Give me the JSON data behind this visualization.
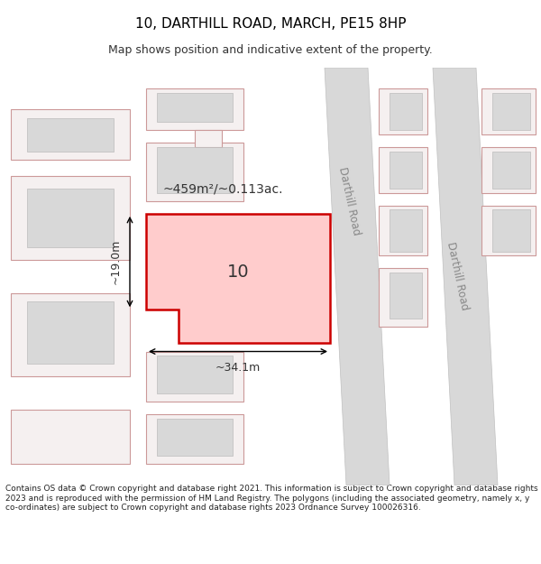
{
  "title": "10, DARTHILL ROAD, MARCH, PE15 8HP",
  "subtitle": "Map shows position and indicative extent of the property.",
  "footer": "Contains OS data © Crown copyright and database right 2021. This information is subject to Crown copyright and database rights 2023 and is reproduced with the permission of HM Land Registry. The polygons (including the associated geometry, namely x, y co-ordinates) are subject to Crown copyright and database rights 2023 Ordnance Survey 100026316.",
  "background_color": "#f5f5f5",
  "map_bg": "#f0f0f0",
  "road_color": "#d0d0d0",
  "plot_outline_color": "#cc0000",
  "plot_fill_color": "#ffcccc",
  "neighbor_outline_color": "#cc9999",
  "neighbor_fill_color": "#f5f0f0",
  "road_label": "Darthill Road",
  "area_label": "~459m²/~0.113ac.",
  "number_label": "10",
  "dim_width": "~34.1m",
  "dim_height": "~19.0m"
}
